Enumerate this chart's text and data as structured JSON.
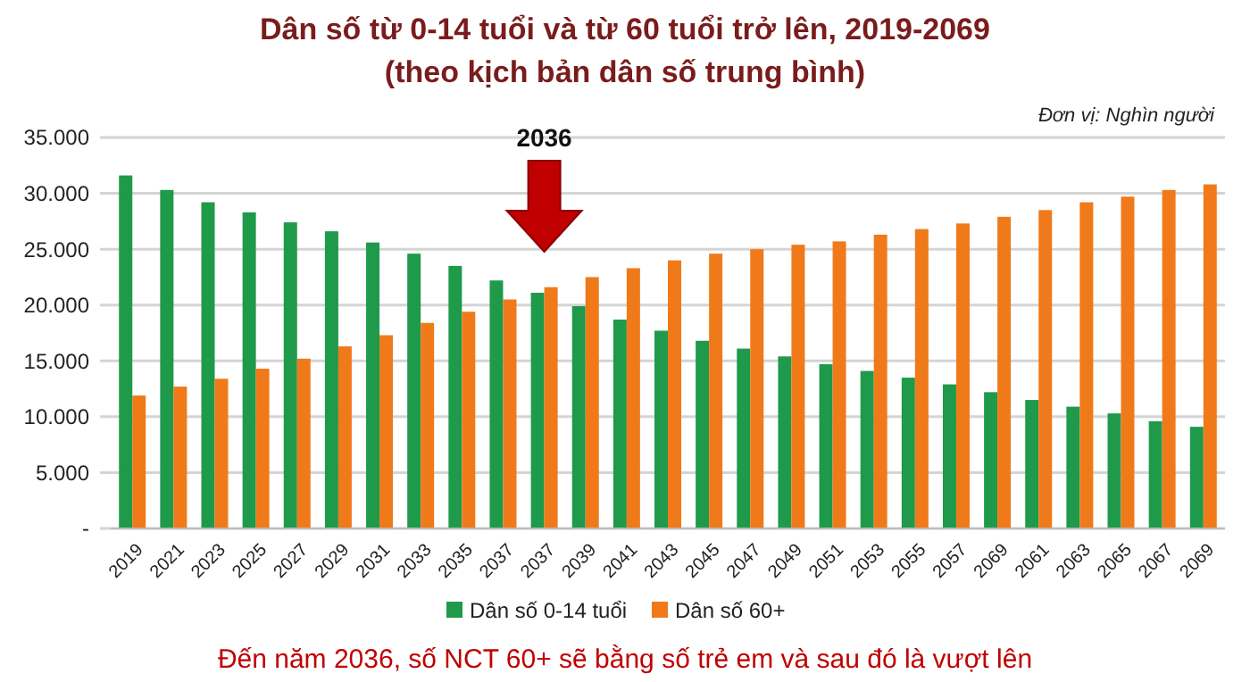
{
  "chart_data": {
    "type": "bar",
    "title": "Dân số từ 0-14 tuổi và từ 60 tuổi trở lên, 2019-2069",
    "subtitle": "(theo kịch bản dân số trung bình)",
    "categories": [
      "2019",
      "2021",
      "2023",
      "2025",
      "2027",
      "2029",
      "2031",
      "2033",
      "2035",
      "2037",
      "2037",
      "2039",
      "2041",
      "2043",
      "2045",
      "2047",
      "2049",
      "2051",
      "2053",
      "2055",
      "2057",
      "2069",
      "2061",
      "2063",
      "2065",
      "2067",
      "2069"
    ],
    "series": [
      {
        "name": "Dân số 0-14 tuổi",
        "color": "#1e9a4a",
        "values": [
          31600,
          30300,
          29200,
          28300,
          27400,
          26600,
          25600,
          24600,
          23500,
          22200,
          21100,
          19900,
          18700,
          17700,
          16800,
          16100,
          15400,
          14700,
          14100,
          13500,
          12900,
          12200,
          11500,
          10900,
          10300,
          9600,
          9100
        ]
      },
      {
        "name": "Dân số 60+",
        "color": "#f07a1a",
        "values": [
          11900,
          12700,
          13400,
          14300,
          15200,
          16300,
          17300,
          18400,
          19400,
          20500,
          21600,
          22500,
          23300,
          24000,
          24600,
          25000,
          25400,
          25700,
          26300,
          26800,
          27300,
          27900,
          28500,
          29200,
          29700,
          30300,
          30800
        ]
      }
    ],
    "ylim": [
      0,
      35000
    ],
    "yticks": [
      {
        "value": 0,
        "label": "-"
      },
      {
        "value": 5000,
        "label": "5.000"
      },
      {
        "value": 10000,
        "label": "10.000"
      },
      {
        "value": 15000,
        "label": "15.000"
      },
      {
        "value": 20000,
        "label": "20.000"
      },
      {
        "value": 25000,
        "label": "25.000"
      },
      {
        "value": 30000,
        "label": "30.000"
      },
      {
        "value": 35000,
        "label": "35.000"
      }
    ],
    "grid": "y",
    "legend": "bottom",
    "annotations": [
      "2036",
      "Đơn vị: Nghìn người",
      "Đến năm 2036, số NCT 60+ sẽ bằng số trẻ em và sau đó là vượt lên"
    ]
  }
}
